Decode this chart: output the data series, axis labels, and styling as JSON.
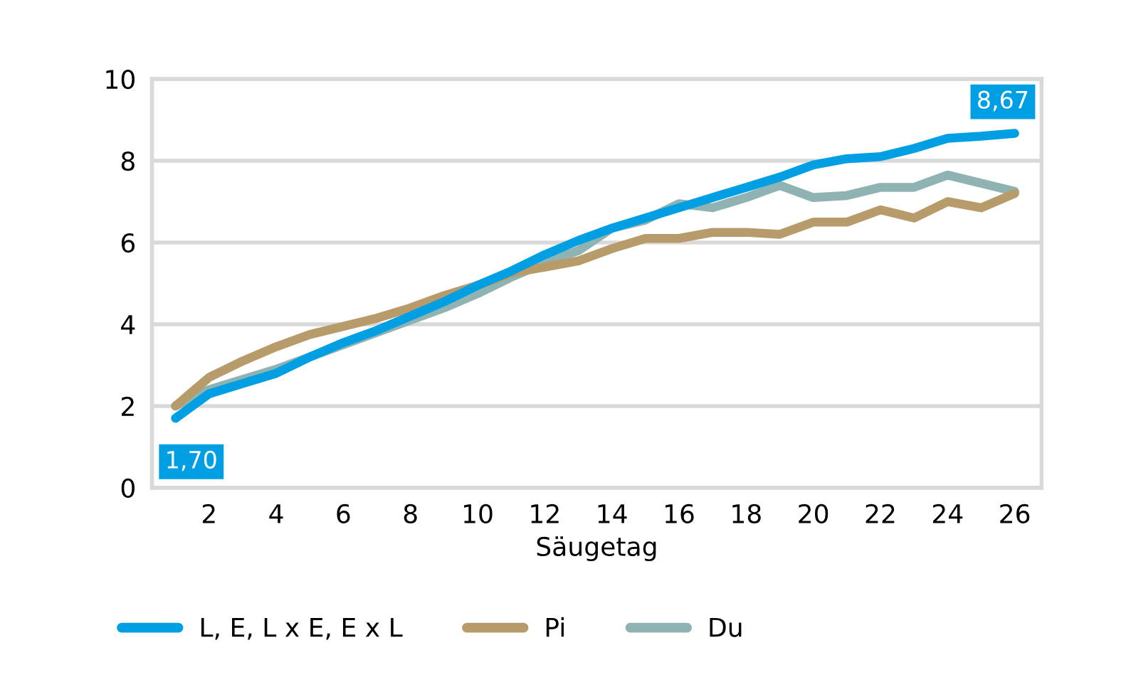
{
  "chart_data": {
    "type": "line",
    "xlabel": "Säugetag",
    "x": [
      1,
      2,
      3,
      4,
      5,
      6,
      7,
      8,
      9,
      10,
      11,
      12,
      13,
      14,
      15,
      16,
      17,
      18,
      19,
      20,
      21,
      22,
      23,
      24,
      25,
      26
    ],
    "xlim": [
      0.3,
      26.8
    ],
    "xticks": [
      2,
      4,
      6,
      8,
      10,
      12,
      14,
      16,
      18,
      20,
      22,
      24,
      26
    ],
    "ylim": [
      0,
      10
    ],
    "yticks": [
      0,
      2,
      4,
      6,
      8,
      10
    ],
    "grid": "y",
    "legend": "bottom",
    "line_style": "solid",
    "marker": "none",
    "series": [
      {
        "name": "L, E, L x E, E x L",
        "color": "#009fe3",
        "values": [
          1.7,
          2.3,
          2.55,
          2.8,
          3.2,
          3.55,
          3.85,
          4.2,
          4.55,
          4.95,
          5.3,
          5.7,
          6.05,
          6.35,
          6.6,
          6.85,
          7.1,
          7.35,
          7.6,
          7.9,
          8.05,
          8.1,
          8.3,
          8.55,
          8.6,
          8.67
        ],
        "value_labels": [
          "1,70",
          null,
          null,
          null,
          null,
          null,
          null,
          null,
          null,
          null,
          null,
          null,
          null,
          null,
          null,
          null,
          null,
          null,
          null,
          null,
          null,
          null,
          null,
          null,
          null,
          "8,67"
        ]
      },
      {
        "name": "Pi",
        "color": "#b89b6a",
        "values": [
          2.0,
          2.7,
          3.1,
          3.45,
          3.75,
          3.95,
          4.15,
          4.4,
          4.7,
          4.95,
          5.25,
          5.4,
          5.55,
          5.85,
          6.1,
          6.1,
          6.25,
          6.25,
          6.2,
          6.5,
          6.5,
          6.8,
          6.6,
          7.0,
          6.85,
          7.2
        ]
      },
      {
        "name": "Du",
        "color": "#8fb3b2",
        "values": [
          2.0,
          2.4,
          2.65,
          2.9,
          3.2,
          3.5,
          3.8,
          4.1,
          4.4,
          4.75,
          5.15,
          5.5,
          5.8,
          6.35,
          6.55,
          6.95,
          6.85,
          7.1,
          7.4,
          7.1,
          7.15,
          7.35,
          7.35,
          7.65,
          7.45,
          7.25
        ]
      }
    ]
  }
}
